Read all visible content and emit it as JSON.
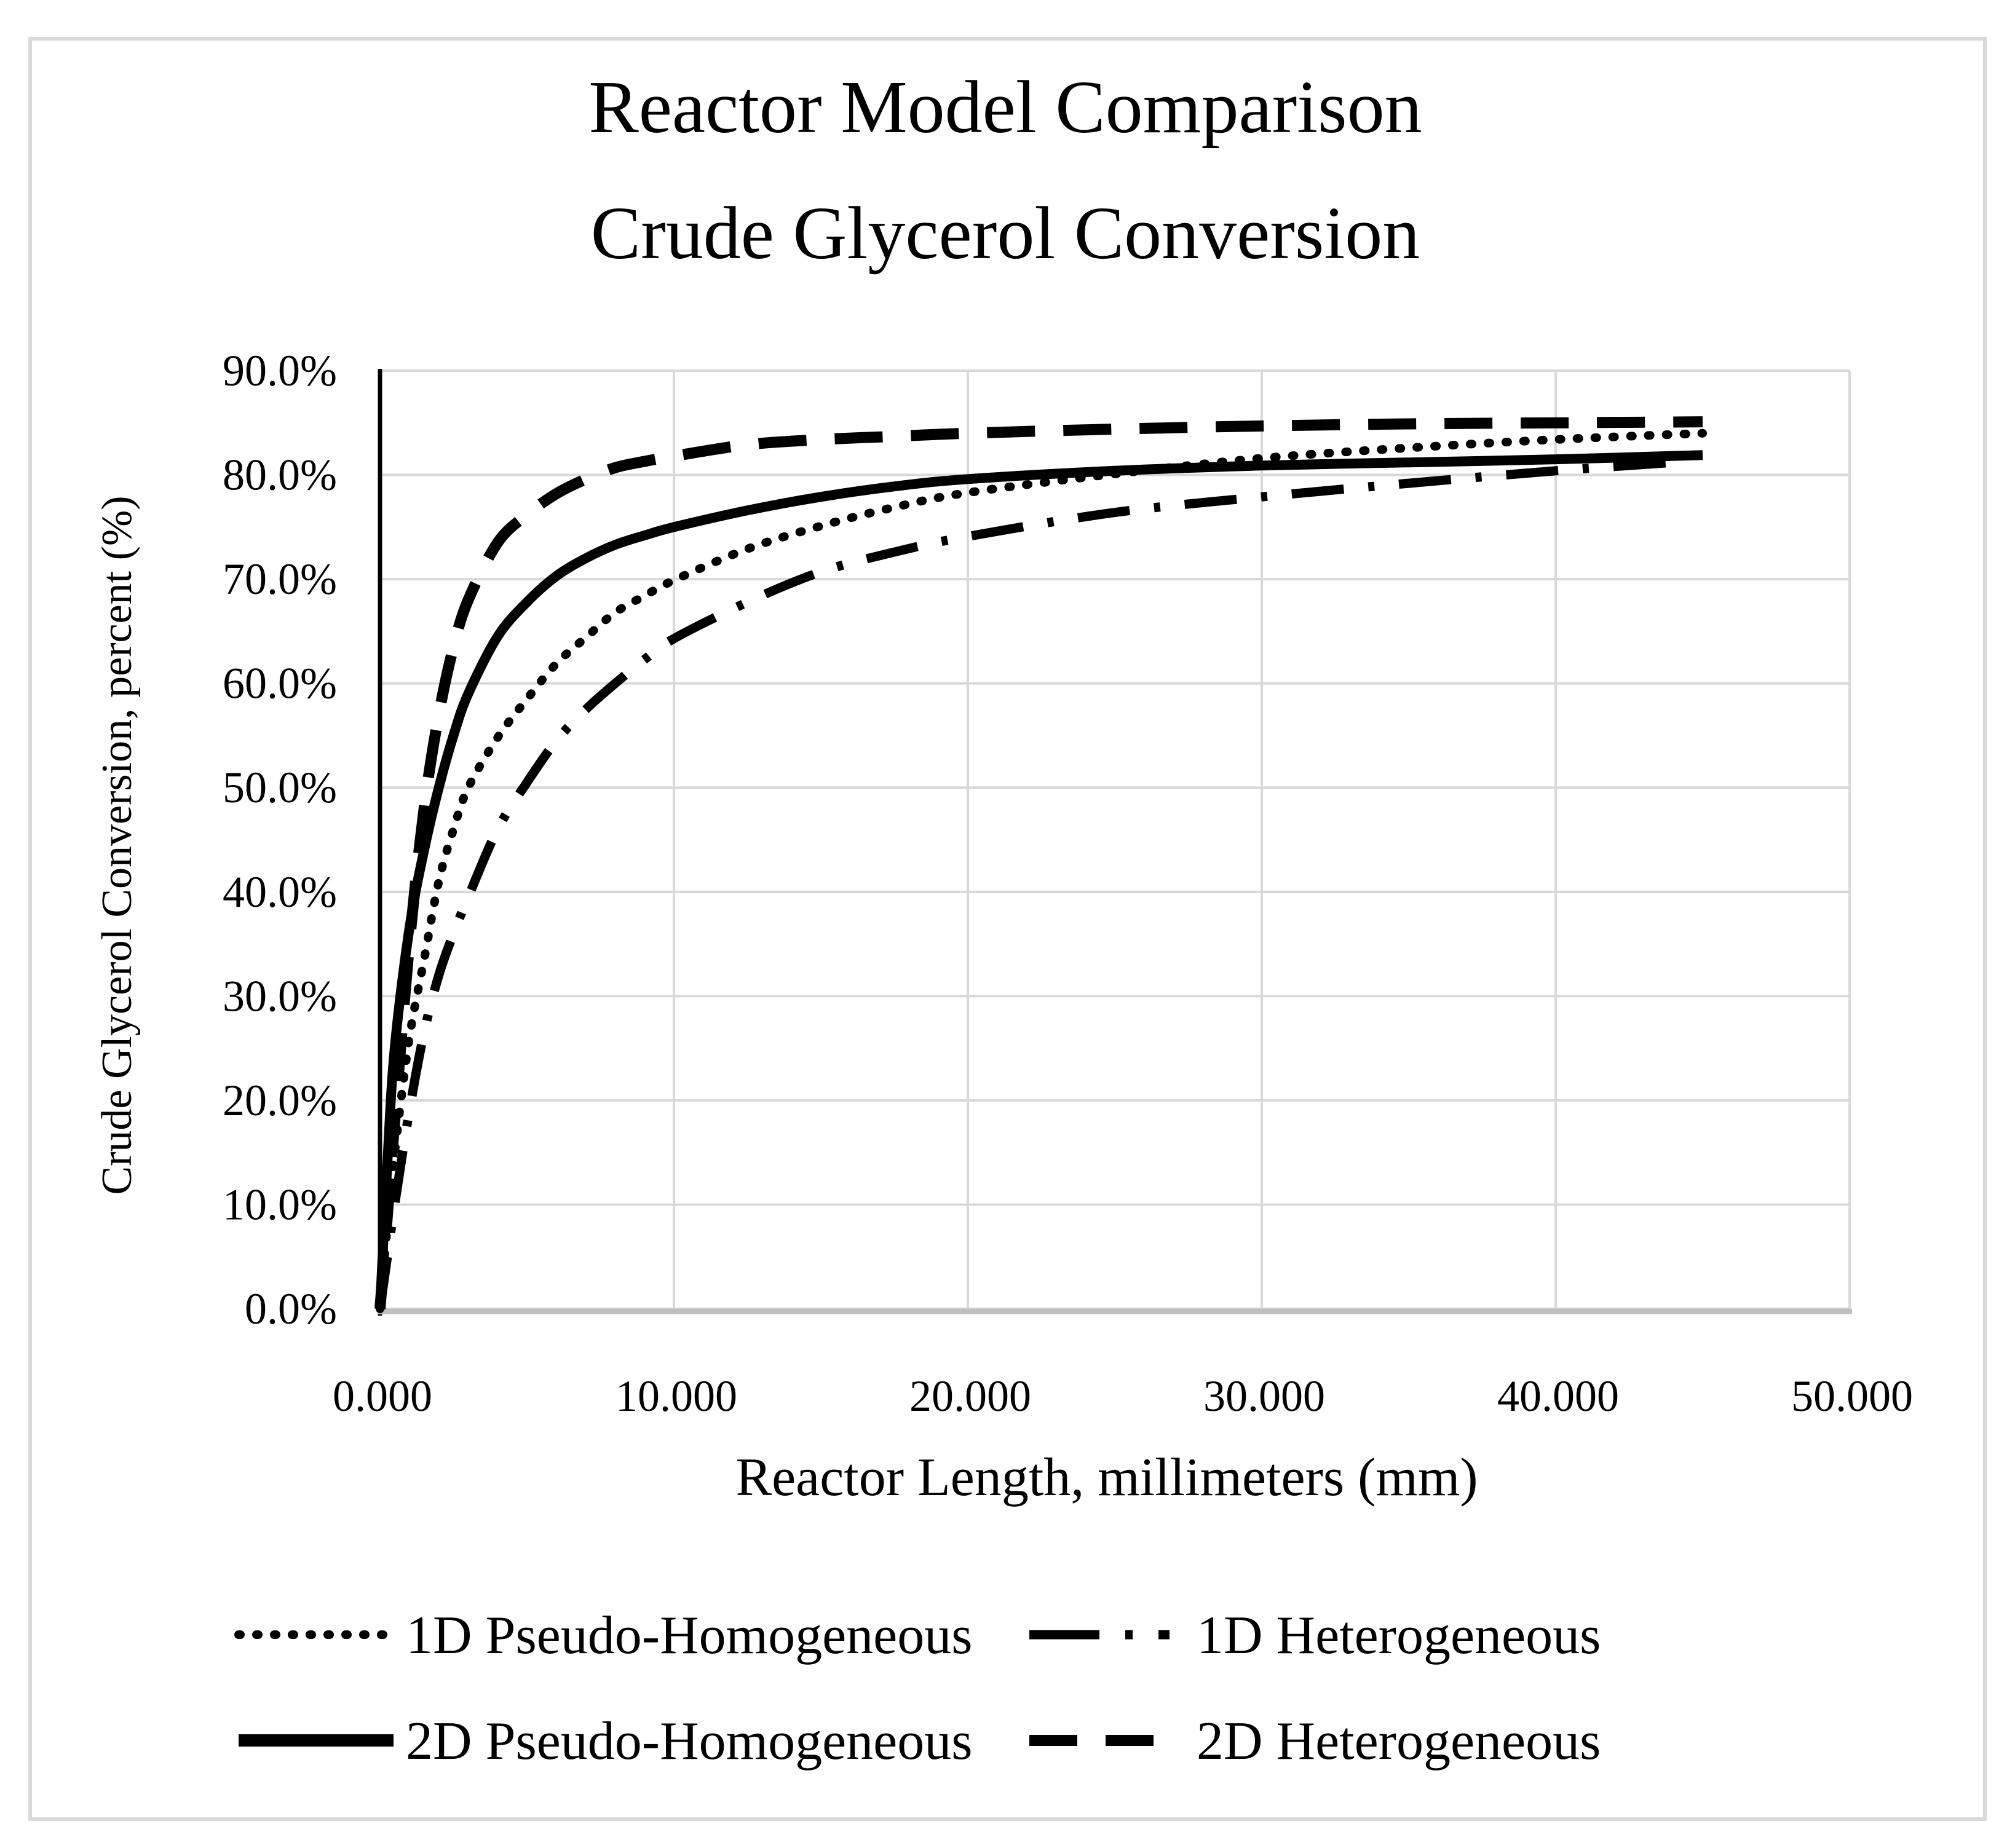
{
  "figure": {
    "title_line1": "Reactor Model Comparison",
    "title_line2": "Crude Glycerol Conversion",
    "colors": {
      "background": "#ffffff",
      "text": "#000000",
      "series_stroke": "#000000",
      "gridline": "#d9d9d9",
      "x_axis_line": "#bfbfbf",
      "y_axis_line": "#000000",
      "outer_border": "#d9d9d9"
    }
  },
  "chart_data": {
    "type": "line",
    "title": "Reactor Model Comparison Crude Glycerol Conversion",
    "xlabel": "Reactor Length, millimeters (mm)",
    "ylabel": "Crude Glycerol Conversion, percent (%)",
    "xlim": [
      0,
      50
    ],
    "ylim_percent": [
      0,
      90
    ],
    "x_ticks": [
      "0.000",
      "10.000",
      "20.000",
      "30.000",
      "40.000",
      "50.000"
    ],
    "y_ticks": [
      "0.0%",
      "10.0%",
      "20.0%",
      "30.0%",
      "40.0%",
      "50.0%",
      "60.0%",
      "70.0%",
      "80.0%",
      "90.0%"
    ],
    "grid": true,
    "legend_position": "bottom",
    "y_unit": "percent conversion",
    "x_unit": "millimeters",
    "series": [
      {
        "name": "1D Pseudo-Homogeneous",
        "style": "dotted",
        "points": [
          [
            0,
            0
          ],
          [
            0.25,
            8
          ],
          [
            0.5,
            15
          ],
          [
            1,
            26
          ],
          [
            1.5,
            33.5
          ],
          [
            2,
            41
          ],
          [
            2.5,
            46
          ],
          [
            3,
            50
          ],
          [
            4,
            54.8
          ],
          [
            5,
            58.5
          ],
          [
            6,
            61.9
          ],
          [
            7,
            64.4
          ],
          [
            8,
            66.8
          ],
          [
            9,
            68.4
          ],
          [
            10,
            69.9
          ],
          [
            12.5,
            72.9
          ],
          [
            15,
            75.1
          ],
          [
            17.5,
            76.9
          ],
          [
            20,
            78.3
          ],
          [
            25,
            80.1
          ],
          [
            30,
            81.6
          ],
          [
            35,
            82.6
          ],
          [
            40,
            83.4
          ],
          [
            45,
            84.0
          ]
        ]
      },
      {
        "name": "1D Heterogeneous",
        "style": "dashdot",
        "points": [
          [
            0,
            0
          ],
          [
            0.25,
            5
          ],
          [
            0.5,
            10
          ],
          [
            1,
            19
          ],
          [
            1.5,
            26.5
          ],
          [
            2,
            32
          ],
          [
            2.5,
            36
          ],
          [
            3,
            39.5
          ],
          [
            4,
            46
          ],
          [
            5,
            50.5
          ],
          [
            6,
            54.5
          ],
          [
            7,
            57.5
          ],
          [
            8,
            60
          ],
          [
            9,
            62.3
          ],
          [
            10,
            64.3
          ],
          [
            12.5,
            67.8
          ],
          [
            15,
            70.7
          ],
          [
            17.5,
            72.6
          ],
          [
            20,
            74.1
          ],
          [
            25,
            76.4
          ],
          [
            30,
            77.9
          ],
          [
            35,
            79.2
          ],
          [
            40,
            80.4
          ],
          [
            44.5,
            81.3
          ]
        ]
      },
      {
        "name": "2D Pseudo-Homogeneous",
        "style": "solid",
        "points": [
          [
            0,
            0
          ],
          [
            0.25,
            14
          ],
          [
            0.5,
            25
          ],
          [
            1,
            36.5
          ],
          [
            1.5,
            44
          ],
          [
            2,
            50
          ],
          [
            2.5,
            55
          ],
          [
            3,
            59
          ],
          [
            4,
            64.5
          ],
          [
            5,
            67.8
          ],
          [
            6,
            70.3
          ],
          [
            7,
            72
          ],
          [
            8,
            73.3
          ],
          [
            9,
            74.2
          ],
          [
            10,
            75
          ],
          [
            12.5,
            76.6
          ],
          [
            15,
            77.9
          ],
          [
            17.5,
            78.9
          ],
          [
            20,
            79.6
          ],
          [
            25,
            80.4
          ],
          [
            30,
            80.9
          ],
          [
            35,
            81.2
          ],
          [
            40,
            81.5
          ],
          [
            45,
            81.9
          ]
        ]
      },
      {
        "name": "2D Heterogeneous",
        "style": "dashed",
        "points": [
          [
            0,
            0
          ],
          [
            0.25,
            9
          ],
          [
            0.5,
            18
          ],
          [
            1,
            35
          ],
          [
            1.5,
            48
          ],
          [
            2,
            57
          ],
          [
            2.5,
            63.5
          ],
          [
            3,
            68
          ],
          [
            4,
            73.5
          ],
          [
            5,
            76.2
          ],
          [
            6,
            78.2
          ],
          [
            7,
            79.6
          ],
          [
            8,
            80.7
          ],
          [
            9,
            81.3
          ],
          [
            10,
            81.8
          ],
          [
            12.5,
            82.9
          ],
          [
            15,
            83.4
          ],
          [
            17.5,
            83.7
          ],
          [
            20,
            84.0
          ],
          [
            25,
            84.4
          ],
          [
            30,
            84.7
          ],
          [
            35,
            84.9
          ],
          [
            40,
            85.0
          ],
          [
            45,
            85.1
          ]
        ]
      }
    ]
  }
}
